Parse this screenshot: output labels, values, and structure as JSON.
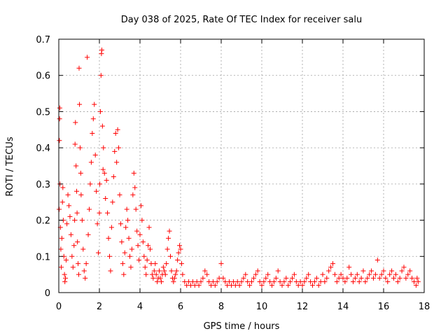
{
  "chart_data": {
    "type": "scatter",
    "title": "Day 038 of 2025, Rate Of TEC Index for receiver salu",
    "xlabel": "GPS time / hours",
    "ylabel": "ROTI / TECUs",
    "xlim": [
      0,
      18
    ],
    "ylim": [
      0,
      0.7
    ],
    "x_ticks": [
      0,
      2,
      4,
      6,
      8,
      10,
      12,
      14,
      16,
      18
    ],
    "x_tick_labels": [
      "0",
      "2",
      "4",
      "6",
      "8",
      "10",
      "12",
      "14",
      "16",
      "18"
    ],
    "y_ticks": [
      0,
      0.1,
      0.2,
      0.3,
      0.4,
      0.5,
      0.6,
      0.7
    ],
    "y_tick_labels": [
      "0",
      "0.1",
      "0.2",
      "0.3",
      "0.4",
      "0.5",
      "0.6",
      "0.7"
    ],
    "grid": true,
    "marker": "plus",
    "marker_color": "#ff0000",
    "series": [
      {
        "name": "ROTI",
        "points": [
          [
            0.02,
            0.23
          ],
          [
            0.03,
            0.42
          ],
          [
            0.04,
            0.48
          ],
          [
            0.05,
            0.51
          ],
          [
            0.06,
            0.3
          ],
          [
            0.08,
            0.18
          ],
          [
            0.1,
            0.12
          ],
          [
            0.12,
            0.07
          ],
          [
            0.15,
            0.15
          ],
          [
            0.18,
            0.25
          ],
          [
            0.2,
            0.29
          ],
          [
            0.22,
            0.2
          ],
          [
            0.25,
            0.1
          ],
          [
            0.28,
            0.05
          ],
          [
            0.3,
            0.03
          ],
          [
            0.33,
            0.04
          ],
          [
            0.36,
            0.09
          ],
          [
            0.4,
            0.19
          ],
          [
            0.45,
            0.27
          ],
          [
            0.5,
            0.24
          ],
          [
            0.55,
            0.21
          ],
          [
            0.6,
            0.16
          ],
          [
            0.65,
            0.1
          ],
          [
            0.7,
            0.07
          ],
          [
            0.75,
            0.13
          ],
          [
            0.78,
            0.2
          ],
          [
            0.8,
            0.41
          ],
          [
            0.82,
            0.47
          ],
          [
            0.85,
            0.35
          ],
          [
            0.88,
            0.28
          ],
          [
            0.9,
            0.22
          ],
          [
            0.92,
            0.14
          ],
          [
            0.95,
            0.08
          ],
          [
            0.98,
            0.05
          ],
          [
            1.0,
            0.62
          ],
          [
            1.02,
            0.52
          ],
          [
            1.05,
            0.4
          ],
          [
            1.08,
            0.33
          ],
          [
            1.1,
            0.27
          ],
          [
            1.15,
            0.2
          ],
          [
            1.2,
            0.12
          ],
          [
            1.25,
            0.06
          ],
          [
            1.3,
            0.04
          ],
          [
            1.35,
            0.08
          ],
          [
            1.4,
            0.65
          ],
          [
            1.45,
            0.16
          ],
          [
            1.5,
            0.23
          ],
          [
            1.55,
            0.3
          ],
          [
            1.6,
            0.36
          ],
          [
            1.65,
            0.44
          ],
          [
            1.7,
            0.48
          ],
          [
            1.75,
            0.52
          ],
          [
            1.8,
            0.38
          ],
          [
            1.85,
            0.28
          ],
          [
            1.9,
            0.19
          ],
          [
            1.95,
            0.11
          ],
          [
            2.0,
            0.22
          ],
          [
            2.02,
            0.3
          ],
          [
            2.05,
            0.5
          ],
          [
            2.08,
            0.6
          ],
          [
            2.1,
            0.66
          ],
          [
            2.12,
            0.67
          ],
          [
            2.15,
            0.46
          ],
          [
            2.18,
            0.34
          ],
          [
            2.2,
            0.4
          ],
          [
            2.25,
            0.33
          ],
          [
            2.3,
            0.26
          ],
          [
            2.35,
            0.31
          ],
          [
            2.4,
            0.22
          ],
          [
            2.45,
            0.15
          ],
          [
            2.5,
            0.1
          ],
          [
            2.55,
            0.06
          ],
          [
            2.6,
            0.18
          ],
          [
            2.65,
            0.25
          ],
          [
            2.7,
            0.32
          ],
          [
            2.75,
            0.39
          ],
          [
            2.8,
            0.44
          ],
          [
            2.85,
            0.36
          ],
          [
            2.9,
            0.45
          ],
          [
            2.95,
            0.4
          ],
          [
            3.0,
            0.27
          ],
          [
            3.05,
            0.19
          ],
          [
            3.1,
            0.14
          ],
          [
            3.15,
            0.08
          ],
          [
            3.2,
            0.05
          ],
          [
            3.25,
            0.11
          ],
          [
            3.3,
            0.18
          ],
          [
            3.35,
            0.23
          ],
          [
            3.4,
            0.2
          ],
          [
            3.45,
            0.15
          ],
          [
            3.5,
            0.1
          ],
          [
            3.55,
            0.07
          ],
          [
            3.6,
            0.12
          ],
          [
            3.65,
            0.27
          ],
          [
            3.7,
            0.33
          ],
          [
            3.75,
            0.29
          ],
          [
            3.8,
            0.23
          ],
          [
            3.85,
            0.17
          ],
          [
            3.9,
            0.13
          ],
          [
            3.95,
            0.09
          ],
          [
            4.0,
            0.16
          ],
          [
            4.05,
            0.24
          ],
          [
            4.1,
            0.2
          ],
          [
            4.15,
            0.14
          ],
          [
            4.2,
            0.1
          ],
          [
            4.25,
            0.07
          ],
          [
            4.3,
            0.05
          ],
          [
            4.35,
            0.09
          ],
          [
            4.4,
            0.13
          ],
          [
            4.45,
            0.18
          ],
          [
            4.5,
            0.12
          ],
          [
            4.55,
            0.08
          ],
          [
            4.6,
            0.05
          ],
          [
            4.65,
            0.04
          ],
          [
            4.7,
            0.06
          ],
          [
            4.75,
            0.08
          ],
          [
            4.8,
            0.05
          ],
          [
            4.85,
            0.03
          ],
          [
            4.9,
            0.04
          ],
          [
            4.95,
            0.06
          ],
          [
            5.0,
            0.04
          ],
          [
            5.05,
            0.03
          ],
          [
            5.1,
            0.05
          ],
          [
            5.15,
            0.07
          ],
          [
            5.2,
            0.06
          ],
          [
            5.25,
            0.05
          ],
          [
            5.3,
            0.08
          ],
          [
            5.35,
            0.12
          ],
          [
            5.4,
            0.15
          ],
          [
            5.45,
            0.17
          ],
          [
            5.5,
            0.1
          ],
          [
            5.55,
            0.06
          ],
          [
            5.6,
            0.04
          ],
          [
            5.65,
            0.03
          ],
          [
            5.7,
            0.04
          ],
          [
            5.75,
            0.05
          ],
          [
            5.8,
            0.06
          ],
          [
            5.85,
            0.09
          ],
          [
            5.9,
            0.11
          ],
          [
            5.95,
            0.13
          ],
          [
            6.0,
            0.12
          ],
          [
            6.05,
            0.08
          ],
          [
            6.1,
            0.05
          ],
          [
            6.2,
            0.03
          ],
          [
            6.3,
            0.02
          ],
          [
            6.4,
            0.03
          ],
          [
            6.5,
            0.02
          ],
          [
            6.6,
            0.03
          ],
          [
            6.7,
            0.02
          ],
          [
            6.8,
            0.03
          ],
          [
            6.9,
            0.02
          ],
          [
            7.0,
            0.03
          ],
          [
            7.1,
            0.04
          ],
          [
            7.2,
            0.06
          ],
          [
            7.3,
            0.05
          ],
          [
            7.4,
            0.03
          ],
          [
            7.5,
            0.02
          ],
          [
            7.6,
            0.03
          ],
          [
            7.7,
            0.02
          ],
          [
            7.8,
            0.03
          ],
          [
            7.9,
            0.04
          ],
          [
            8.0,
            0.08
          ],
          [
            8.1,
            0.04
          ],
          [
            8.2,
            0.03
          ],
          [
            8.3,
            0.02
          ],
          [
            8.4,
            0.03
          ],
          [
            8.5,
            0.02
          ],
          [
            8.6,
            0.03
          ],
          [
            8.7,
            0.02
          ],
          [
            8.8,
            0.03
          ],
          [
            8.9,
            0.02
          ],
          [
            9.0,
            0.03
          ],
          [
            9.1,
            0.04
          ],
          [
            9.2,
            0.05
          ],
          [
            9.3,
            0.03
          ],
          [
            9.4,
            0.02
          ],
          [
            9.5,
            0.03
          ],
          [
            9.6,
            0.04
          ],
          [
            9.7,
            0.05
          ],
          [
            9.8,
            0.06
          ],
          [
            9.9,
            0.03
          ],
          [
            10.0,
            0.02
          ],
          [
            10.1,
            0.03
          ],
          [
            10.2,
            0.04
          ],
          [
            10.3,
            0.05
          ],
          [
            10.4,
            0.03
          ],
          [
            10.5,
            0.02
          ],
          [
            10.6,
            0.03
          ],
          [
            10.7,
            0.04
          ],
          [
            10.8,
            0.06
          ],
          [
            10.9,
            0.03
          ],
          [
            11.0,
            0.02
          ],
          [
            11.1,
            0.03
          ],
          [
            11.2,
            0.04
          ],
          [
            11.3,
            0.02
          ],
          [
            11.4,
            0.03
          ],
          [
            11.5,
            0.04
          ],
          [
            11.6,
            0.05
          ],
          [
            11.7,
            0.03
          ],
          [
            11.8,
            0.02
          ],
          [
            11.9,
            0.03
          ],
          [
            12.0,
            0.02
          ],
          [
            12.1,
            0.03
          ],
          [
            12.2,
            0.04
          ],
          [
            12.3,
            0.05
          ],
          [
            12.4,
            0.03
          ],
          [
            12.5,
            0.02
          ],
          [
            12.6,
            0.03
          ],
          [
            12.7,
            0.04
          ],
          [
            12.8,
            0.02
          ],
          [
            12.9,
            0.03
          ],
          [
            13.0,
            0.05
          ],
          [
            13.1,
            0.03
          ],
          [
            13.2,
            0.04
          ],
          [
            13.3,
            0.06
          ],
          [
            13.4,
            0.07
          ],
          [
            13.5,
            0.08
          ],
          [
            13.6,
            0.05
          ],
          [
            13.7,
            0.03
          ],
          [
            13.8,
            0.04
          ],
          [
            13.9,
            0.05
          ],
          [
            14.0,
            0.04
          ],
          [
            14.1,
            0.03
          ],
          [
            14.2,
            0.04
          ],
          [
            14.3,
            0.07
          ],
          [
            14.4,
            0.05
          ],
          [
            14.5,
            0.03
          ],
          [
            14.6,
            0.04
          ],
          [
            14.7,
            0.05
          ],
          [
            14.8,
            0.03
          ],
          [
            14.9,
            0.04
          ],
          [
            15.0,
            0.06
          ],
          [
            15.1,
            0.03
          ],
          [
            15.2,
            0.04
          ],
          [
            15.3,
            0.05
          ],
          [
            15.4,
            0.06
          ],
          [
            15.5,
            0.04
          ],
          [
            15.6,
            0.05
          ],
          [
            15.7,
            0.09
          ],
          [
            15.8,
            0.04
          ],
          [
            15.9,
            0.05
          ],
          [
            16.0,
            0.06
          ],
          [
            16.1,
            0.04
          ],
          [
            16.2,
            0.03
          ],
          [
            16.3,
            0.05
          ],
          [
            16.4,
            0.06
          ],
          [
            16.5,
            0.04
          ],
          [
            16.6,
            0.05
          ],
          [
            16.7,
            0.03
          ],
          [
            16.8,
            0.04
          ],
          [
            16.9,
            0.06
          ],
          [
            17.0,
            0.07
          ],
          [
            17.1,
            0.04
          ],
          [
            17.2,
            0.05
          ],
          [
            17.3,
            0.06
          ],
          [
            17.4,
            0.04
          ],
          [
            17.5,
            0.03
          ],
          [
            17.6,
            0.02
          ],
          [
            17.65,
            0.04
          ],
          [
            17.7,
            0.03
          ]
        ]
      }
    ]
  }
}
